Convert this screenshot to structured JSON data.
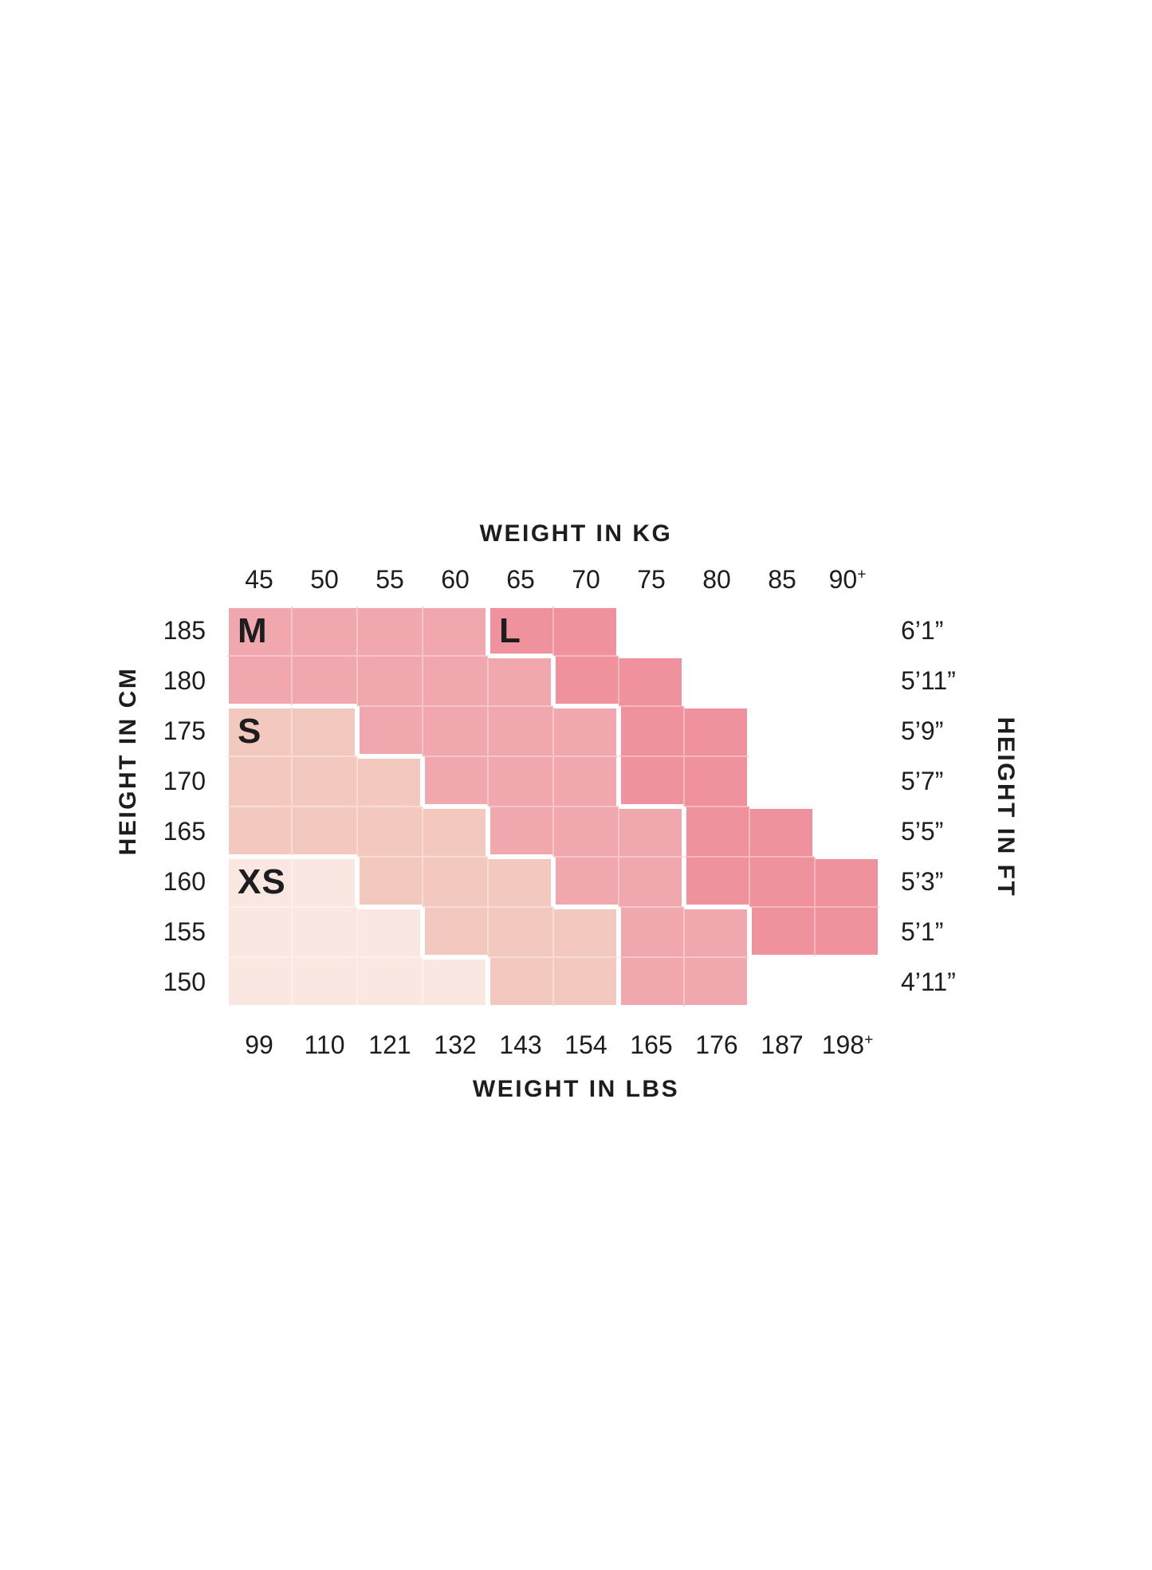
{
  "page": {
    "background": "#ffffff",
    "text_color": "#1d1d1f"
  },
  "titles": {
    "top": "WEIGHT IN KG",
    "bottom": "WEIGHT IN LBS",
    "left": "HEIGHT IN CM",
    "right": "HEIGHT IN FT"
  },
  "axis_labels": {
    "kg": [
      "45",
      "50",
      "55",
      "60",
      "65",
      "70",
      "75",
      "80",
      "85",
      "90+"
    ],
    "lbs": [
      "99",
      "110",
      "121",
      "132",
      "143",
      "154",
      "165",
      "176",
      "187",
      "198+"
    ],
    "cm": [
      "185",
      "180",
      "175",
      "170",
      "165",
      "160",
      "155",
      "150"
    ],
    "ft": [
      "6’1”",
      "5’11”",
      "5’9”",
      "5’7”",
      "5’5”",
      "5’3”",
      "5’1”",
      "4’11”"
    ]
  },
  "sizes": [
    {
      "code": "XS",
      "color": "#fbe7e2",
      "label_row": 5,
      "label_col": 0
    },
    {
      "code": "S",
      "color": "#f3c8be",
      "label_row": 2,
      "label_col": 0
    },
    {
      "code": "M",
      "color": "#f0a7ad",
      "label_row": 0,
      "label_col": 0
    },
    {
      "code": "L",
      "color": "#f0929e",
      "label_row": 0,
      "label_col": 4
    }
  ],
  "chart_data": {
    "type": "heatmap",
    "x_weight_kg": [
      45,
      50,
      55,
      60,
      65,
      70,
      75,
      80,
      85,
      "90+"
    ],
    "x_weight_lbs": [
      99,
      110,
      121,
      132,
      143,
      154,
      165,
      176,
      187,
      "198+"
    ],
    "y_height_cm": [
      185,
      180,
      175,
      170,
      165,
      160,
      155,
      150
    ],
    "y_height_ft": [
      "6’1”",
      "5’11”",
      "5’9”",
      "5’7”",
      "5’5”",
      "5’3”",
      "5’1”",
      "4’11”"
    ],
    "legend": [
      "XS",
      "S",
      "M",
      "L"
    ],
    "grid": [
      [
        "M",
        "M",
        "M",
        "M",
        "L",
        "L",
        "",
        "",
        "",
        ""
      ],
      [
        "M",
        "M",
        "M",
        "M",
        "M",
        "L",
        "L",
        "",
        "",
        ""
      ],
      [
        "S",
        "S",
        "M",
        "M",
        "M",
        "M",
        "L",
        "L",
        "",
        ""
      ],
      [
        "S",
        "S",
        "S",
        "M",
        "M",
        "M",
        "L",
        "L",
        "",
        ""
      ],
      [
        "S",
        "S",
        "S",
        "S",
        "M",
        "M",
        "M",
        "L",
        "L",
        ""
      ],
      [
        "XS",
        "XS",
        "S",
        "S",
        "S",
        "M",
        "M",
        "L",
        "L",
        "L"
      ],
      [
        "XS",
        "XS",
        "XS",
        "S",
        "S",
        "S",
        "M",
        "M",
        "L",
        "L"
      ],
      [
        "XS",
        "XS",
        "XS",
        "XS",
        "S",
        "S",
        "M",
        "M",
        "",
        ""
      ]
    ]
  }
}
